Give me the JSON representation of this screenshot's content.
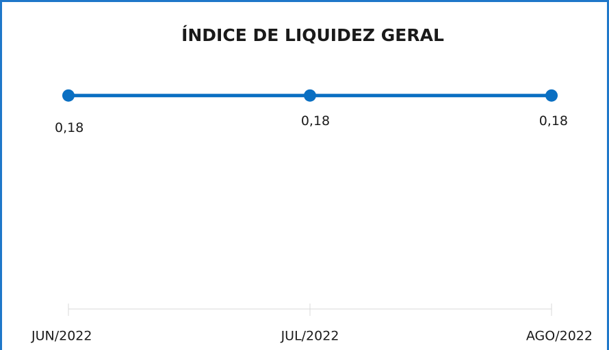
{
  "chart_data": {
    "type": "line",
    "title": "ÍNDICE DE LIQUIDEZ GERAL",
    "categories": [
      "JUN/2022",
      "JUL/2022",
      "AGO/2022"
    ],
    "values": [
      0.18,
      0.18,
      0.18
    ],
    "value_labels": [
      "0,18",
      "0,18",
      "0,18"
    ],
    "color": "#0a6fc2",
    "ylim": [
      0,
      0.2
    ]
  }
}
